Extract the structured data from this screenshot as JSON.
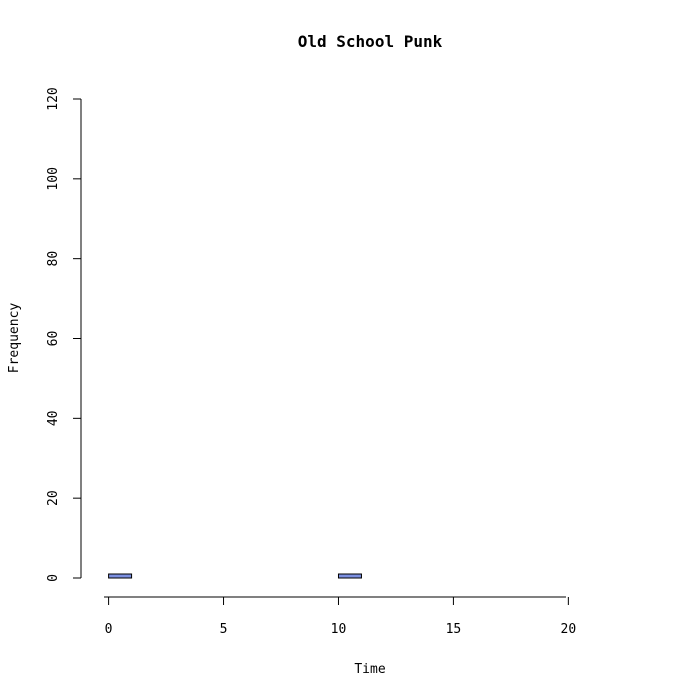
{
  "chart_data": {
    "type": "bar",
    "title": "Old School Punk",
    "xlabel": "Time",
    "ylabel": "Frequency",
    "x_ticks": [
      "0",
      "5",
      "10",
      "15",
      "20"
    ],
    "y_ticks": [
      "0",
      "20",
      "40",
      "60",
      "80",
      "100",
      "120"
    ],
    "xlim": [
      -0.2,
      23.9
    ],
    "ylim": [
      0,
      120
    ],
    "bin_width": 1,
    "bins": [
      {
        "x0": 0,
        "x1": 1,
        "value": 1
      },
      {
        "x0": 1,
        "x1": 2,
        "value": 0
      },
      {
        "x0": 2,
        "x1": 3,
        "value": 0
      },
      {
        "x0": 3,
        "x1": 4,
        "value": 0
      },
      {
        "x0": 4,
        "x1": 5,
        "value": 0
      },
      {
        "x0": 5,
        "x1": 6,
        "value": 0
      },
      {
        "x0": 6,
        "x1": 7,
        "value": 0
      },
      {
        "x0": 7,
        "x1": 8,
        "value": 0
      },
      {
        "x0": 8,
        "x1": 9,
        "value": 0
      },
      {
        "x0": 9,
        "x1": 10,
        "value": 0
      },
      {
        "x0": 10,
        "x1": 11,
        "value": 1
      },
      {
        "x0": 11,
        "x1": 12,
        "value": 0
      },
      {
        "x0": 12,
        "x1": 13,
        "value": 0
      },
      {
        "x0": 13,
        "x1": 14,
        "value": 0
      },
      {
        "x0": 14,
        "x1": 15,
        "value": 0
      },
      {
        "x0": 15,
        "x1": 16,
        "value": 0
      },
      {
        "x0": 16,
        "x1": 17,
        "value": 0
      },
      {
        "x0": 17,
        "x1": 18,
        "value": 0
      },
      {
        "x0": 18,
        "x1": 19,
        "value": 0
      },
      {
        "x0": 19,
        "x1": 20,
        "value": 0
      },
      {
        "x0": 20,
        "x1": 21,
        "value": 0
      },
      {
        "x0": 21,
        "x1": 22,
        "value": 0
      },
      {
        "x0": 22,
        "x1": 23,
        "value": 0
      },
      {
        "x0": 23,
        "x1": 24,
        "value": 0
      }
    ],
    "grid": false,
    "bar_color": "#7b8fe0",
    "bar_edge_color": "#000000"
  }
}
